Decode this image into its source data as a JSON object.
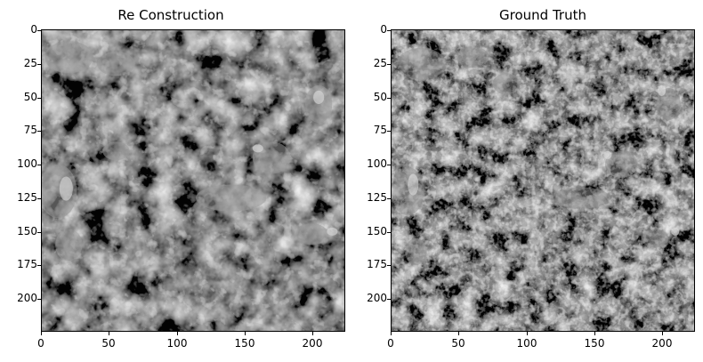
{
  "panels": [
    {
      "title": "Re Construction",
      "xticks": [
        "0",
        "50",
        "100",
        "150",
        "200"
      ],
      "yticks": [
        "0",
        "25",
        "50",
        "75",
        "100",
        "125",
        "150",
        "175",
        "200"
      ],
      "image_desc": "grayscale reconstruction"
    },
    {
      "title": "Ground Truth",
      "xticks": [
        "0",
        "50",
        "100",
        "150",
        "200"
      ],
      "yticks": [
        "0",
        "25",
        "50",
        "75",
        "100",
        "125",
        "150",
        "175",
        "200"
      ],
      "image_desc": "grayscale ground truth"
    }
  ],
  "colors": {
    "background": "#ffffff",
    "image_dark": "#1a1a1a",
    "image_light": "#d9d9d9"
  }
}
